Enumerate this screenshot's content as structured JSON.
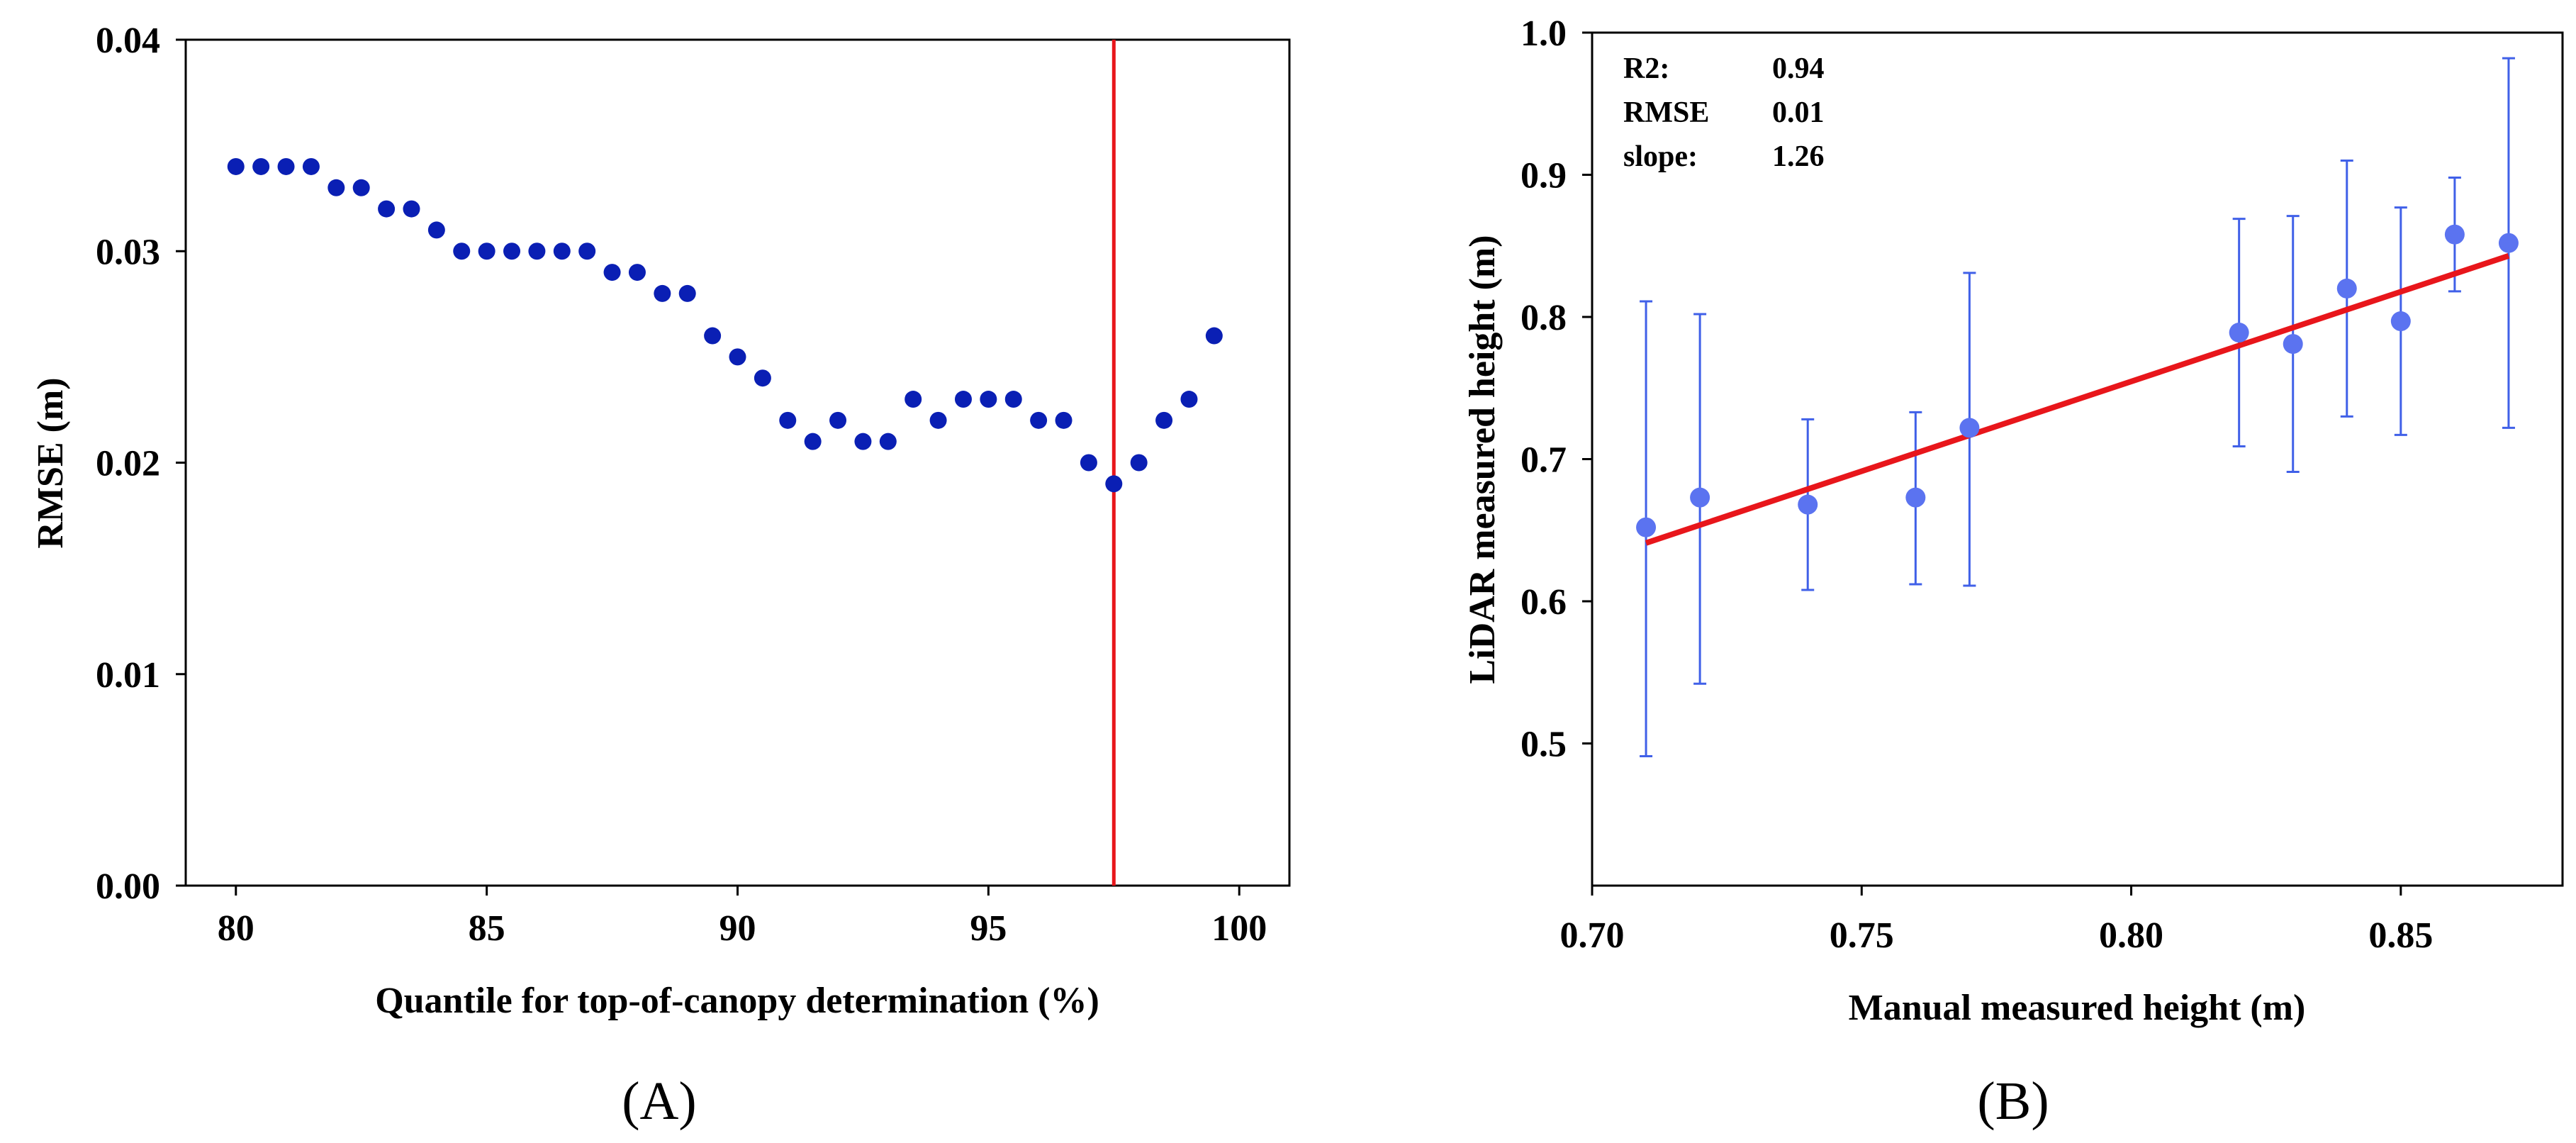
{
  "chart_data": [
    {
      "type": "scatter",
      "panel_label": "(A)",
      "xlabel": "Quantile for top-of-canopy determination (%)",
      "ylabel": "RMSE (m)",
      "xlim": [
        79,
        101
      ],
      "ylim": [
        0,
        0.04
      ],
      "xticks": [
        80,
        85,
        90,
        95,
        100
      ],
      "yticks": [
        0,
        0.01,
        0.02,
        0.03,
        0.04
      ],
      "xtick_labels": [
        "80",
        "85",
        "90",
        "95",
        "100"
      ],
      "ytick_labels": [
        "0.00",
        "0.01",
        "0.02",
        "0.03",
        "0.04"
      ],
      "grid": false,
      "point_color": "#0a1fb4",
      "vline": {
        "x": 97.5,
        "color": "#e8161b"
      },
      "x": [
        80,
        80.5,
        81,
        81.5,
        82,
        82.5,
        83,
        83.5,
        84,
        84.5,
        85,
        85.5,
        86,
        86.5,
        87,
        87.5,
        88,
        88.5,
        89,
        89.5,
        90,
        90.5,
        91,
        91.5,
        92,
        92.5,
        93,
        93.5,
        94,
        94.5,
        95,
        95.5,
        96,
        96.5,
        97,
        97.5,
        98,
        98.5,
        99,
        99.5
      ],
      "y": [
        0.034,
        0.034,
        0.034,
        0.034,
        0.033,
        0.033,
        0.032,
        0.032,
        0.031,
        0.03,
        0.03,
        0.03,
        0.03,
        0.03,
        0.03,
        0.029,
        0.029,
        0.028,
        0.028,
        0.026,
        0.025,
        0.024,
        0.022,
        0.021,
        0.022,
        0.021,
        0.021,
        0.023,
        0.022,
        0.023,
        0.023,
        0.023,
        0.022,
        0.022,
        0.02,
        0.019,
        0.02,
        0.022,
        0.023,
        0.026
      ]
    },
    {
      "type": "scatter",
      "panel_label": "(B)",
      "xlabel": "Manual measured height (m)",
      "ylabel": "LiDAR measured height (m)",
      "xlim": [
        0.7,
        0.88
      ],
      "ylim": [
        0.4,
        1.0
      ],
      "xticks": [
        0.7,
        0.75,
        0.8,
        0.85
      ],
      "yticks": [
        0.5,
        0.6,
        0.7,
        0.8,
        0.9,
        1.0
      ],
      "xtick_labels": [
        "0.70",
        "0.75",
        "0.80",
        "0.85"
      ],
      "ytick_labels": [
        "0.5",
        "0.6",
        "0.7",
        "0.8",
        "0.9",
        "1.0"
      ],
      "grid": false,
      "point_color": "#5b73f0",
      "error_color": "#4060e8",
      "fit_color": "#e8161b",
      "fit_line": {
        "x": [
          0.71,
          0.87
        ],
        "y": [
          0.641,
          0.843
        ]
      },
      "points": [
        {
          "x": 0.71,
          "y": 0.652,
          "lo": 0.491,
          "hi": 0.811
        },
        {
          "x": 0.72,
          "y": 0.673,
          "lo": 0.542,
          "hi": 0.802
        },
        {
          "x": 0.74,
          "y": 0.668,
          "lo": 0.608,
          "hi": 0.728
        },
        {
          "x": 0.76,
          "y": 0.673,
          "lo": 0.612,
          "hi": 0.733
        },
        {
          "x": 0.77,
          "y": 0.722,
          "lo": 0.611,
          "hi": 0.831
        },
        {
          "x": 0.82,
          "y": 0.789,
          "lo": 0.709,
          "hi": 0.869
        },
        {
          "x": 0.83,
          "y": 0.781,
          "lo": 0.691,
          "hi": 0.871
        },
        {
          "x": 0.84,
          "y": 0.82,
          "lo": 0.73,
          "hi": 0.91
        },
        {
          "x": 0.85,
          "y": 0.797,
          "lo": 0.717,
          "hi": 0.877
        },
        {
          "x": 0.86,
          "y": 0.858,
          "lo": 0.818,
          "hi": 0.898
        },
        {
          "x": 0.87,
          "y": 0.852,
          "lo": 0.722,
          "hi": 0.982
        }
      ],
      "stats": [
        {
          "label": "R2:",
          "value": "0.94"
        },
        {
          "label": "RMSE",
          "value": "0.01"
        },
        {
          "label": "slope:",
          "value": "1.26"
        }
      ]
    }
  ]
}
